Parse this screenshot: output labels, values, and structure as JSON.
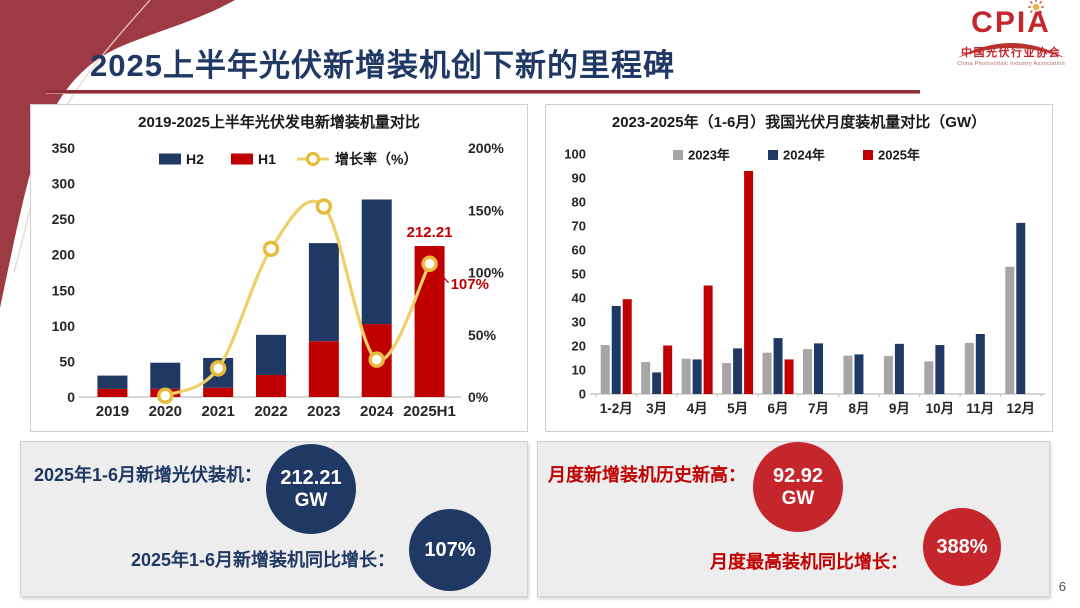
{
  "slide": {
    "title": "2025上半年光伏新增装机创下新的里程碑",
    "page_number": "6"
  },
  "logo": {
    "acronym": "CPIA",
    "name_cn": "中国光伏行业协会",
    "name_en": "China Photovoltaic Industry Association"
  },
  "colors": {
    "navy": "#1f3864",
    "red": "#c00000",
    "gray": "#a6a6a6",
    "gold_line": "#efcf6a",
    "gold_ring": "#e7bc3e",
    "axis_text": "#262626",
    "axis_line": "#bfbfbf",
    "annotation_red": "#c00000",
    "maroon": "#9d3a44"
  },
  "chart_data": [
    {
      "type": "bar",
      "subtype": "stacked-bars-with-growth-line",
      "title": "2019-2025上半年光伏发电新增装机量对比",
      "categories": [
        "2019",
        "2020",
        "2021",
        "2022",
        "2023",
        "2024",
        "2025H1"
      ],
      "series": [
        {
          "name": "H1",
          "role": "bar",
          "color_key": "red",
          "values": [
            11.4,
            11.5,
            13.0,
            30.9,
            78.4,
            102.5,
            212.21
          ]
        },
        {
          "name": "H2",
          "role": "bar",
          "color_key": "navy",
          "values": [
            18.7,
            36.7,
            41.9,
            56.5,
            137.9,
            175.1,
            0
          ]
        },
        {
          "name": "增长率（%）",
          "role": "line",
          "color_key": "gold",
          "values": [
            null,
            1,
            23,
            119,
            153,
            30,
            107
          ]
        }
      ],
      "legend_order": [
        "H2",
        "H1",
        "增长率（%）"
      ],
      "left_axis": {
        "min": 0,
        "max": 350,
        "step": 50,
        "suffix": ""
      },
      "right_axis": {
        "min": 0,
        "max": 200,
        "step": 50,
        "suffix": "%"
      },
      "annotations": {
        "bar_label": {
          "text": "212.21",
          "category_index": 6
        },
        "line_label": {
          "text": "107%",
          "category_index": 6
        }
      }
    },
    {
      "type": "bar",
      "subtype": "grouped",
      "title": "2023-2025年（1-6月）我国光伏月度装机量对比（GW）",
      "categories": [
        "1-2月",
        "3月",
        "4月",
        "5月",
        "6月",
        "7月",
        "8月",
        "9月",
        "10月",
        "11月",
        "12月"
      ],
      "series": [
        {
          "name": "2023年",
          "color_key": "gray",
          "values": [
            20.4,
            13.3,
            14.7,
            12.9,
            17.2,
            18.7,
            16.0,
            15.8,
            13.6,
            21.3,
            53.0
          ]
        },
        {
          "name": "2024年",
          "color_key": "navy",
          "values": [
            36.7,
            9.0,
            14.4,
            19.0,
            23.3,
            21.1,
            16.5,
            20.9,
            20.4,
            25.0,
            71.3
          ]
        },
        {
          "name": "2025年",
          "color_key": "red",
          "values": [
            39.5,
            20.2,
            45.2,
            92.92,
            14.4,
            null,
            null,
            null,
            null,
            null,
            null
          ]
        }
      ],
      "y_axis": {
        "min": 0,
        "max": 100,
        "step": 10,
        "suffix": ""
      }
    }
  ],
  "stats": {
    "left_box": {
      "rows": [
        {
          "label": "2025年1-6月新增光伏装机：",
          "value": "212.21",
          "unit": "GW"
        },
        {
          "label": "2025年1-6月新增装机同比增长：",
          "value": "107%",
          "unit": ""
        }
      ]
    },
    "right_box": {
      "rows": [
        {
          "label": "月度新增装机历史新高：",
          "value": "92.92",
          "unit": "GW"
        },
        {
          "label": "月度最高装机同比增长：",
          "value": "388%",
          "unit": ""
        }
      ]
    }
  }
}
